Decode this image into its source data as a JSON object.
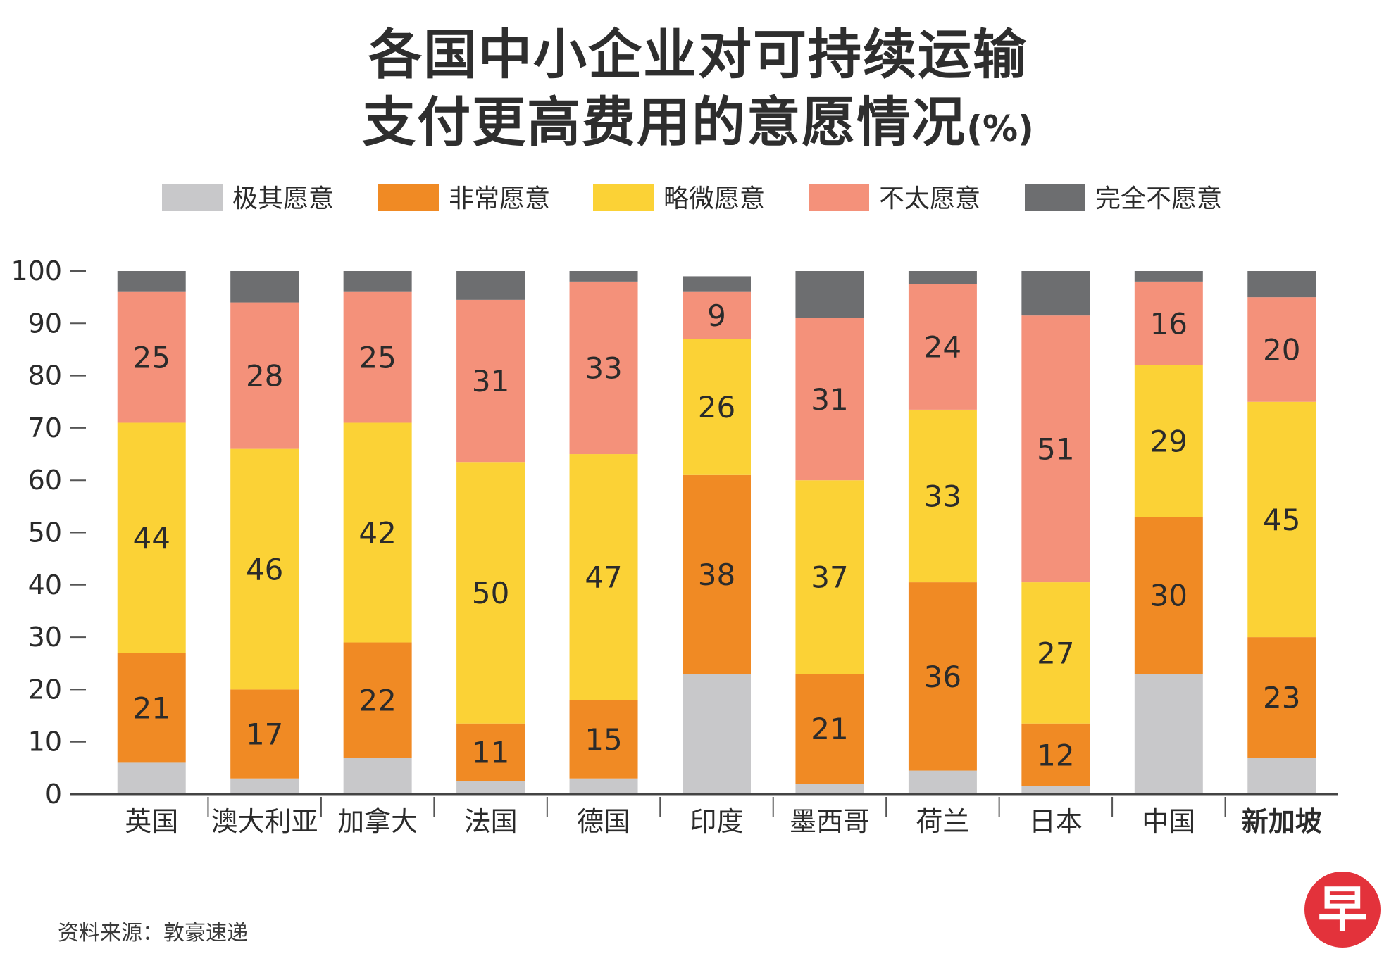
{
  "title": {
    "line1": "各国中小企业对可持续运输",
    "line2": "支付更高费用的意愿情况",
    "unit": "(%)"
  },
  "source": "资料来源：敦豪速递",
  "logo_text": "早",
  "chart_data": {
    "type": "bar",
    "stacked": true,
    "title": "各国中小企业对可持续运输支付更高费用的意愿情况(%)",
    "xlabel": "",
    "ylabel": "",
    "ylim": [
      0,
      100
    ],
    "yticks": [
      0,
      10,
      20,
      30,
      40,
      50,
      60,
      70,
      80,
      90,
      100
    ],
    "categories": [
      "英国",
      "澳大利亚",
      "加拿大",
      "法国",
      "德国",
      "印度",
      "墨西哥",
      "荷兰",
      "日本",
      "中国",
      "新加坡"
    ],
    "highlight_category": "新加坡",
    "legend_position": "top",
    "series": [
      {
        "name": "极其愿意",
        "color": "#c8c8ca",
        "values": [
          6,
          3,
          7,
          2.5,
          3,
          23,
          2,
          4.5,
          1.5,
          23,
          7
        ],
        "labeled": false
      },
      {
        "name": "非常愿意",
        "color": "#f08a24",
        "values": [
          21,
          17,
          22,
          11,
          15,
          38,
          21,
          36,
          12,
          30,
          23
        ],
        "labeled": true
      },
      {
        "name": "略微愿意",
        "color": "#fbd236",
        "values": [
          44,
          46,
          42,
          50,
          47,
          26,
          37,
          33,
          27,
          29,
          45
        ],
        "labeled": true
      },
      {
        "name": "不太愿意",
        "color": "#f4917a",
        "values": [
          25,
          28,
          25,
          31,
          33,
          9,
          31,
          24,
          51,
          16,
          20
        ],
        "labeled": true
      },
      {
        "name": "完全不愿意",
        "color": "#6d6e70",
        "values": [
          7,
          6,
          6.5,
          7,
          3,
          3,
          10,
          4,
          10,
          2,
          5
        ],
        "labeled": false
      }
    ]
  }
}
